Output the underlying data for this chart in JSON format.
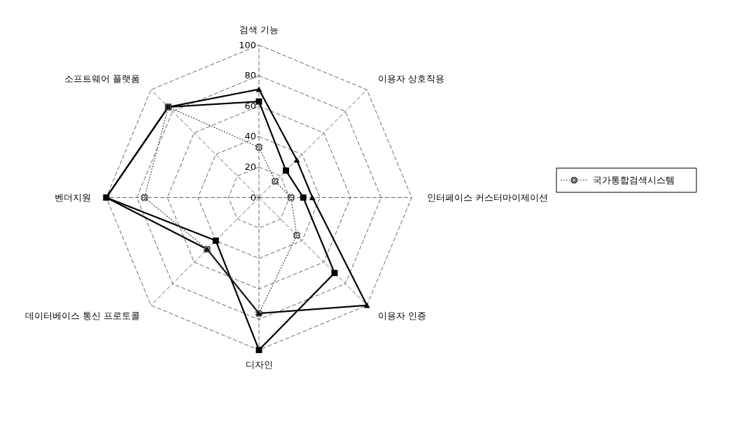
{
  "chart_data": {
    "type": "radar",
    "categories": [
      "검색 기능",
      "이용자 상호작용",
      "인터페이스 커스터마이제이션",
      "이용자 인증",
      "디자인",
      "데이터베이스 통신 프로토콜",
      "벤더지원",
      "소프트웨어 플랫폼"
    ],
    "series": [
      {
        "name": null,
        "color": "#000000",
        "marker": "square",
        "line_style": "solid",
        "values": [
          63,
          25,
          29,
          70,
          100,
          40,
          100,
          84
        ]
      },
      {
        "name": null,
        "color": "#000000",
        "marker": "triangle",
        "line_style": "solid",
        "values": [
          71,
          35,
          35,
          100,
          76,
          48,
          100,
          84
        ]
      },
      {
        "name": "국가통합검색시스템",
        "color": "#444444",
        "marker": "cross",
        "line_style": "dotted",
        "values": [
          33,
          15,
          21,
          35,
          76,
          48,
          75,
          84
        ]
      }
    ],
    "ylim": [
      0,
      100
    ],
    "yticks": [
      0,
      20,
      40,
      60,
      80,
      100
    ],
    "grid": true,
    "legend": "right"
  }
}
